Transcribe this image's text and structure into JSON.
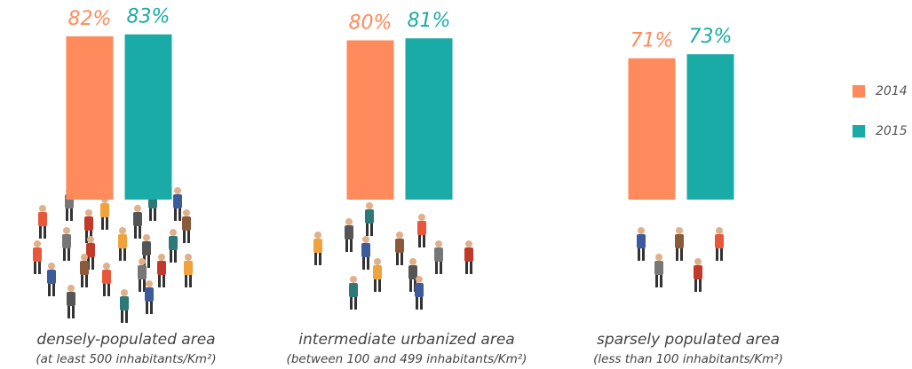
{
  "chart_data": {
    "type": "bar",
    "categories": [
      "densely-populated area",
      "intermediate urbanized area",
      "sparsely populated area"
    ],
    "category_notes": [
      "(at least 500 inhabitants/Km²)",
      "(between 100 and 499 inhabitants/Km²)",
      "(less than 100 inhabitants/Km²)"
    ],
    "series": [
      {
        "name": "2014",
        "color": "#ff8a5b",
        "values": [
          82,
          80,
          71
        ],
        "value_labels": [
          "82%",
          "80%",
          "71%"
        ]
      },
      {
        "name": "2015",
        "color": "#1aaba6",
        "values": [
          83,
          81,
          73
        ],
        "value_labels": [
          "83%",
          "81%",
          "73%"
        ]
      }
    ],
    "ylim": [
      0,
      100
    ],
    "legend": "right"
  }
}
